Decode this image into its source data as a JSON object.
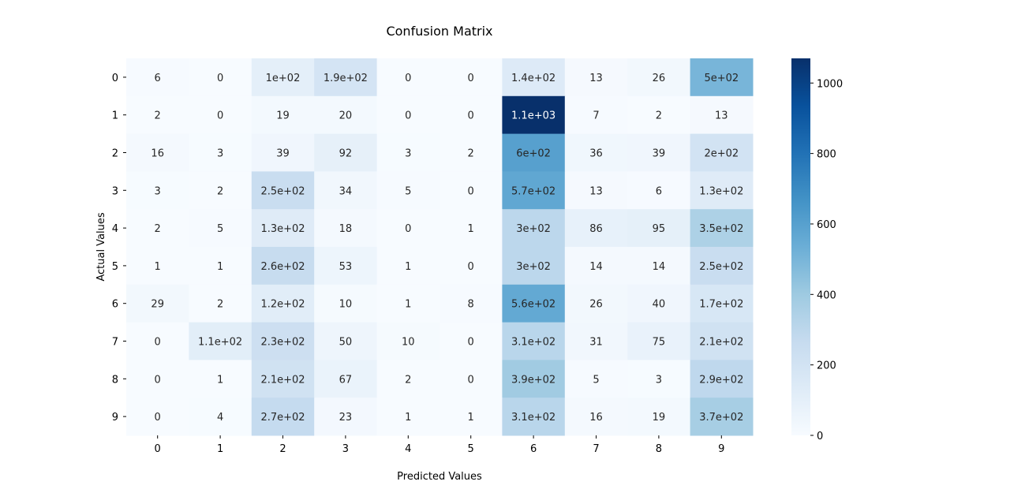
{
  "chart_data": {
    "type": "heatmap",
    "title": "Confusion Matrix",
    "xlabel": "Predicted Values",
    "ylabel": "Actual Values",
    "x_categories": [
      "0",
      "1",
      "2",
      "3",
      "4",
      "5",
      "6",
      "7",
      "8",
      "9"
    ],
    "y_categories": [
      "0",
      "1",
      "2",
      "3",
      "4",
      "5",
      "6",
      "7",
      "8",
      "9"
    ],
    "values": [
      [
        6,
        0,
        100,
        190,
        0,
        0,
        140,
        13,
        26,
        500
      ],
      [
        2,
        0,
        19,
        20,
        0,
        0,
        1070,
        7,
        2,
        13
      ],
      [
        16,
        3,
        39,
        92,
        3,
        2,
        600,
        36,
        39,
        200
      ],
      [
        3,
        2,
        250,
        34,
        5,
        0,
        570,
        13,
        6,
        130
      ],
      [
        2,
        5,
        130,
        18,
        0,
        1,
        300,
        86,
        95,
        350
      ],
      [
        1,
        1,
        260,
        53,
        1,
        0,
        300,
        14,
        14,
        250
      ],
      [
        29,
        2,
        120,
        10,
        1,
        8,
        560,
        26,
        40,
        170
      ],
      [
        0,
        110,
        230,
        50,
        10,
        0,
        310,
        31,
        75,
        210
      ],
      [
        0,
        1,
        210,
        67,
        2,
        0,
        390,
        5,
        3,
        290
      ],
      [
        0,
        4,
        270,
        23,
        1,
        1,
        310,
        16,
        19,
        370
      ]
    ],
    "annotations": [
      [
        "6",
        "0",
        "1e+02",
        "1.9e+02",
        "0",
        "0",
        "1.4e+02",
        "13",
        "26",
        "5e+02"
      ],
      [
        "2",
        "0",
        "19",
        "20",
        "0",
        "0",
        "1.1e+03",
        "7",
        "2",
        "13"
      ],
      [
        "16",
        "3",
        "39",
        "92",
        "3",
        "2",
        "6e+02",
        "36",
        "39",
        "2e+02"
      ],
      [
        "3",
        "2",
        "2.5e+02",
        "34",
        "5",
        "0",
        "5.7e+02",
        "13",
        "6",
        "1.3e+02"
      ],
      [
        "2",
        "5",
        "1.3e+02",
        "18",
        "0",
        "1",
        "3e+02",
        "86",
        "95",
        "3.5e+02"
      ],
      [
        "1",
        "1",
        "2.6e+02",
        "53",
        "1",
        "0",
        "3e+02",
        "14",
        "14",
        "2.5e+02"
      ],
      [
        "29",
        "2",
        "1.2e+02",
        "10",
        "1",
        "8",
        "5.6e+02",
        "26",
        "40",
        "1.7e+02"
      ],
      [
        "0",
        "1.1e+02",
        "2.3e+02",
        "50",
        "10",
        "0",
        "3.1e+02",
        "31",
        "75",
        "2.1e+02"
      ],
      [
        "0",
        "1",
        "2.1e+02",
        "67",
        "2",
        "0",
        "3.9e+02",
        "5",
        "3",
        "2.9e+02"
      ],
      [
        "0",
        "4",
        "2.7e+02",
        "23",
        "1",
        "1",
        "3.1e+02",
        "16",
        "19",
        "3.7e+02"
      ]
    ],
    "colormap": "Blues",
    "colorbar": {
      "min": 0,
      "max": 1070,
      "ticks": [
        0,
        200,
        400,
        600,
        800,
        1000
      ],
      "tick_labels": [
        "0",
        "200",
        "400",
        "600",
        "800",
        "1000"
      ]
    }
  }
}
